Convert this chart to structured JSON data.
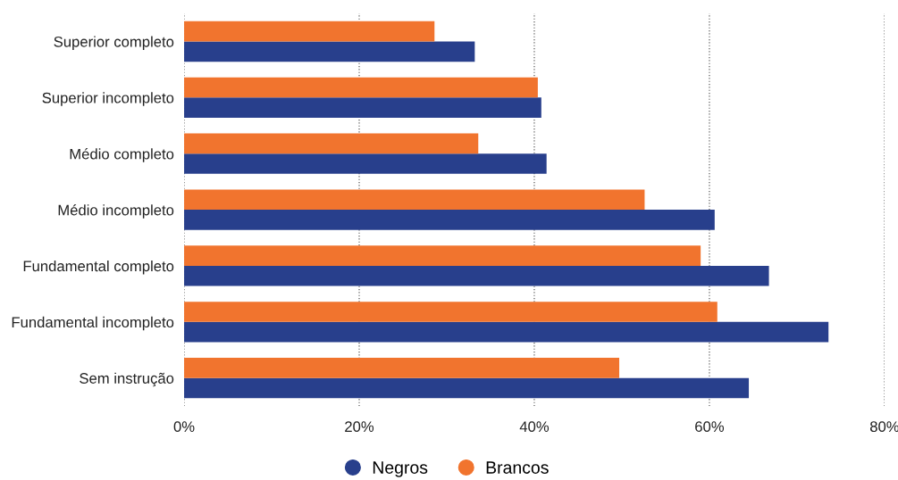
{
  "chart_data": {
    "type": "bar",
    "orientation": "horizontal",
    "categories": [
      "Superior completo",
      "Superior incompleto",
      "Médio completo",
      "Médio incompleto",
      "Fundamental completo",
      "Fundamental incompleto",
      "Sem instrução"
    ],
    "series": [
      {
        "name": "Negros",
        "color": "#283f8c",
        "values": [
          33.2,
          40.8,
          41.4,
          60.6,
          66.8,
          73.6,
          64.5
        ]
      },
      {
        "name": "Brancos",
        "color": "#f1742e",
        "values": [
          28.6,
          40.4,
          33.6,
          52.6,
          59.0,
          60.9,
          49.7
        ]
      }
    ],
    "xlim": [
      0,
      80
    ],
    "xticks": [
      {
        "value": 0,
        "label": "0%"
      },
      {
        "value": 20,
        "label": "20%"
      },
      {
        "value": 40,
        "label": "40%"
      },
      {
        "value": 60,
        "label": "60%"
      },
      {
        "value": 80,
        "label": "80%"
      }
    ],
    "grid": "x",
    "legend": "bottom"
  }
}
